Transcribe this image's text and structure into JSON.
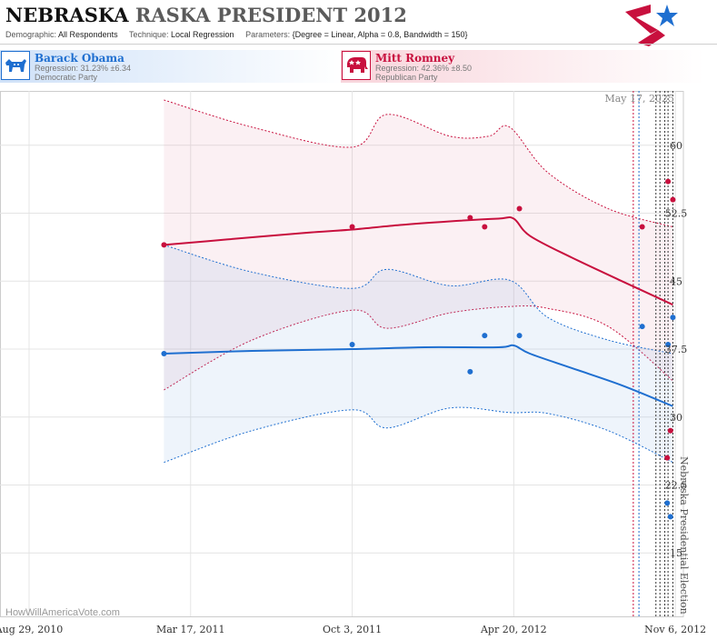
{
  "header": {
    "title_bold": "NEBRASKA",
    "title_rest": "RASKA PRESIDENT 2012",
    "demographic_label": "Demographic:",
    "demographic_value": "All Respondents",
    "technique_label": "Technique:",
    "technique_value": "Local Regression",
    "parameters_label": "Parameters:",
    "parameters_value": "{Degree = Linear, Alpha = 0.8, Bandwidth = 150}"
  },
  "candidates": [
    {
      "name": "Barack Obama",
      "regression": "Regression: 31.23% ±6.34",
      "party": "Democratic Party",
      "color": "#1f6fd0",
      "icon": "donkey-icon"
    },
    {
      "name": "Mitt Romney",
      "regression": "Regression: 42.36% ±8.50",
      "party": "Republican Party",
      "color": "#c8103e",
      "icon": "elephant-icon"
    }
  ],
  "watermark": "HowWillAmericaVote.com",
  "chart_data": {
    "type": "line",
    "current_date_label": "May 17, 2025",
    "election_label": "Nebraska Presidential Election",
    "x_range": [
      "2010-07-24",
      "2012-11-16"
    ],
    "ylim": [
      8,
      66
    ],
    "x_ticks": [
      {
        "date": "2010-08-29",
        "label": "Aug 29, 2010"
      },
      {
        "date": "2011-03-17",
        "label": "Mar 17, 2011"
      },
      {
        "date": "2011-10-03",
        "label": "Oct 3, 2011"
      },
      {
        "date": "2012-04-20",
        "label": "Apr 20, 2012"
      },
      {
        "date": "2012-11-06",
        "label": "Nov 6, 2012"
      }
    ],
    "y_ticks": [
      {
        "value": 15,
        "label": "15"
      },
      {
        "value": 22.5,
        "label": "22.5"
      },
      {
        "value": 30,
        "label": "30"
      },
      {
        "value": 37.5,
        "label": "37.5"
      },
      {
        "value": 45,
        "label": "45"
      },
      {
        "value": 52.5,
        "label": "52.5"
      },
      {
        "value": 60,
        "label": "60"
      }
    ],
    "poll_dates": [
      "2012-09-15",
      "2012-09-22",
      "2012-10-13",
      "2012-10-18",
      "2012-10-24",
      "2012-10-28",
      "2012-11-03"
    ],
    "series": [
      {
        "name": "Mitt Romney",
        "color": "#c8103e",
        "points": [
          [
            "2011-02-12",
            49
          ],
          [
            "2011-10-03",
            51
          ],
          [
            "2012-02-26",
            52
          ],
          [
            "2012-03-15",
            51
          ],
          [
            "2012-04-27",
            53
          ],
          [
            "2012-09-26",
            51
          ],
          [
            "2012-10-28",
            56
          ],
          [
            "2012-11-03",
            54
          ],
          [
            "2012-10-27",
            25.5
          ],
          [
            "2012-10-31",
            28.5
          ]
        ],
        "fit": [
          [
            "2011-02-12",
            49
          ],
          [
            "2011-05-01",
            49.6
          ],
          [
            "2011-08-01",
            50.3
          ],
          [
            "2011-10-03",
            50.7
          ],
          [
            "2011-12-01",
            51.2
          ],
          [
            "2012-02-01",
            51.6
          ],
          [
            "2012-04-01",
            51.9
          ],
          [
            "2012-04-20",
            51.9
          ],
          [
            "2012-05-10",
            50
          ],
          [
            "2012-07-01",
            47.6
          ],
          [
            "2012-09-01",
            45
          ],
          [
            "2012-11-03",
            42.4
          ]
        ],
        "upper": [
          [
            "2011-02-12",
            65
          ],
          [
            "2011-06-01",
            62
          ],
          [
            "2011-10-03",
            59.8
          ],
          [
            "2011-11-15",
            63.4
          ],
          [
            "2012-02-01",
            61
          ],
          [
            "2012-03-20",
            61
          ],
          [
            "2012-04-15",
            62
          ],
          [
            "2012-06-01",
            57
          ],
          [
            "2012-08-15",
            53
          ],
          [
            "2012-11-03",
            51
          ]
        ],
        "lower": [
          [
            "2011-02-12",
            33
          ],
          [
            "2011-06-01",
            38.5
          ],
          [
            "2011-10-03",
            41.8
          ],
          [
            "2011-11-15",
            39.8
          ],
          [
            "2012-02-01",
            41.5
          ],
          [
            "2012-04-15",
            42.2
          ],
          [
            "2012-06-01",
            42
          ],
          [
            "2012-08-15",
            40
          ],
          [
            "2012-11-03",
            34
          ]
        ]
      },
      {
        "name": "Barack Obama",
        "color": "#1f6fd0",
        "points": [
          [
            "2011-02-12",
            37
          ],
          [
            "2011-10-03",
            38
          ],
          [
            "2012-02-26",
            35
          ],
          [
            "2012-03-15",
            39
          ],
          [
            "2012-04-27",
            39
          ],
          [
            "2012-09-26",
            40
          ],
          [
            "2012-10-28",
            38
          ],
          [
            "2012-11-03",
            41
          ],
          [
            "2012-10-27",
            20.5
          ],
          [
            "2012-10-31",
            19
          ]
        ],
        "fit": [
          [
            "2011-02-12",
            37
          ],
          [
            "2011-06-01",
            37.3
          ],
          [
            "2011-10-03",
            37.5
          ],
          [
            "2012-01-01",
            37.7
          ],
          [
            "2012-04-01",
            37.7
          ],
          [
            "2012-04-20",
            37.9
          ],
          [
            "2012-05-10",
            37
          ],
          [
            "2012-07-01",
            35.4
          ],
          [
            "2012-09-01",
            33.5
          ],
          [
            "2012-11-03",
            31.2
          ]
        ],
        "upper": [
          [
            "2011-02-12",
            49
          ],
          [
            "2011-06-01",
            46
          ],
          [
            "2011-10-03",
            44.2
          ],
          [
            "2011-11-15",
            46.3
          ],
          [
            "2012-02-01",
            44.5
          ],
          [
            "2012-04-15",
            45.1
          ],
          [
            "2012-06-01",
            41
          ],
          [
            "2012-08-15",
            38.5
          ],
          [
            "2012-11-03",
            37
          ]
        ],
        "lower": [
          [
            "2011-02-12",
            25
          ],
          [
            "2011-06-01",
            28.5
          ],
          [
            "2011-10-03",
            30.8
          ],
          [
            "2011-11-15",
            28.8
          ],
          [
            "2012-02-01",
            31
          ],
          [
            "2012-04-15",
            30.5
          ],
          [
            "2012-06-01",
            30.4
          ],
          [
            "2012-08-15",
            28.5
          ],
          [
            "2012-11-03",
            25
          ]
        ]
      }
    ]
  }
}
